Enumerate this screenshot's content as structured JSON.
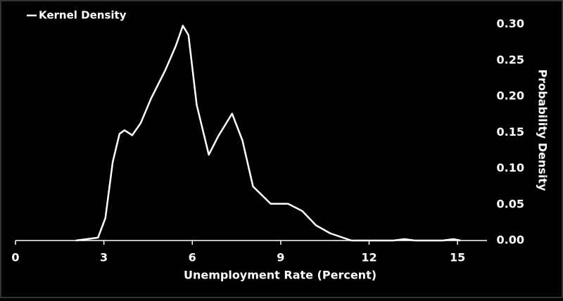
{
  "chart_data": {
    "type": "line",
    "xlabel": "Unemployment Rate (Percent)",
    "ylabel": "Probability Density",
    "xlim": [
      0,
      16
    ],
    "ylim": [
      0,
      0.32
    ],
    "xticks": [
      0,
      3,
      6,
      9,
      12,
      15
    ],
    "yticks": [
      {
        "value": 0,
        "label": "0.00"
      },
      {
        "value": 0.05,
        "label": "0.05"
      },
      {
        "value": 0.1,
        "label": "0.10"
      },
      {
        "value": 0.15,
        "label": "0.15"
      },
      {
        "value": 0.2,
        "label": "0.20"
      },
      {
        "value": 0.25,
        "label": "0.25"
      },
      {
        "value": 0.3,
        "label": "0.30"
      }
    ],
    "legend": "top-left",
    "x": [
      2.05,
      2.8,
      3.05,
      3.3,
      3.53,
      3.7,
      3.96,
      4.25,
      4.6,
      5.08,
      5.44,
      5.68,
      5.87,
      6.15,
      6.56,
      6.87,
      7.35,
      7.7,
      8.06,
      8.66,
      9.25,
      9.73,
      10.2,
      10.68,
      11.4,
      12.83,
      13.2,
      13.55,
      14.5,
      14.86,
      15.1
    ],
    "series": [
      {
        "name": "Kernel Density",
        "color": "#ffffff",
        "values": [
          0,
          0.004,
          0.031,
          0.109,
          0.148,
          0.153,
          0.146,
          0.163,
          0.197,
          0.236,
          0.27,
          0.298,
          0.285,
          0.188,
          0.119,
          0.144,
          0.176,
          0.139,
          0.075,
          0.051,
          0.051,
          0.041,
          0.021,
          0.01,
          0,
          0,
          0.002,
          0,
          0,
          0.002,
          0
        ]
      }
    ]
  }
}
